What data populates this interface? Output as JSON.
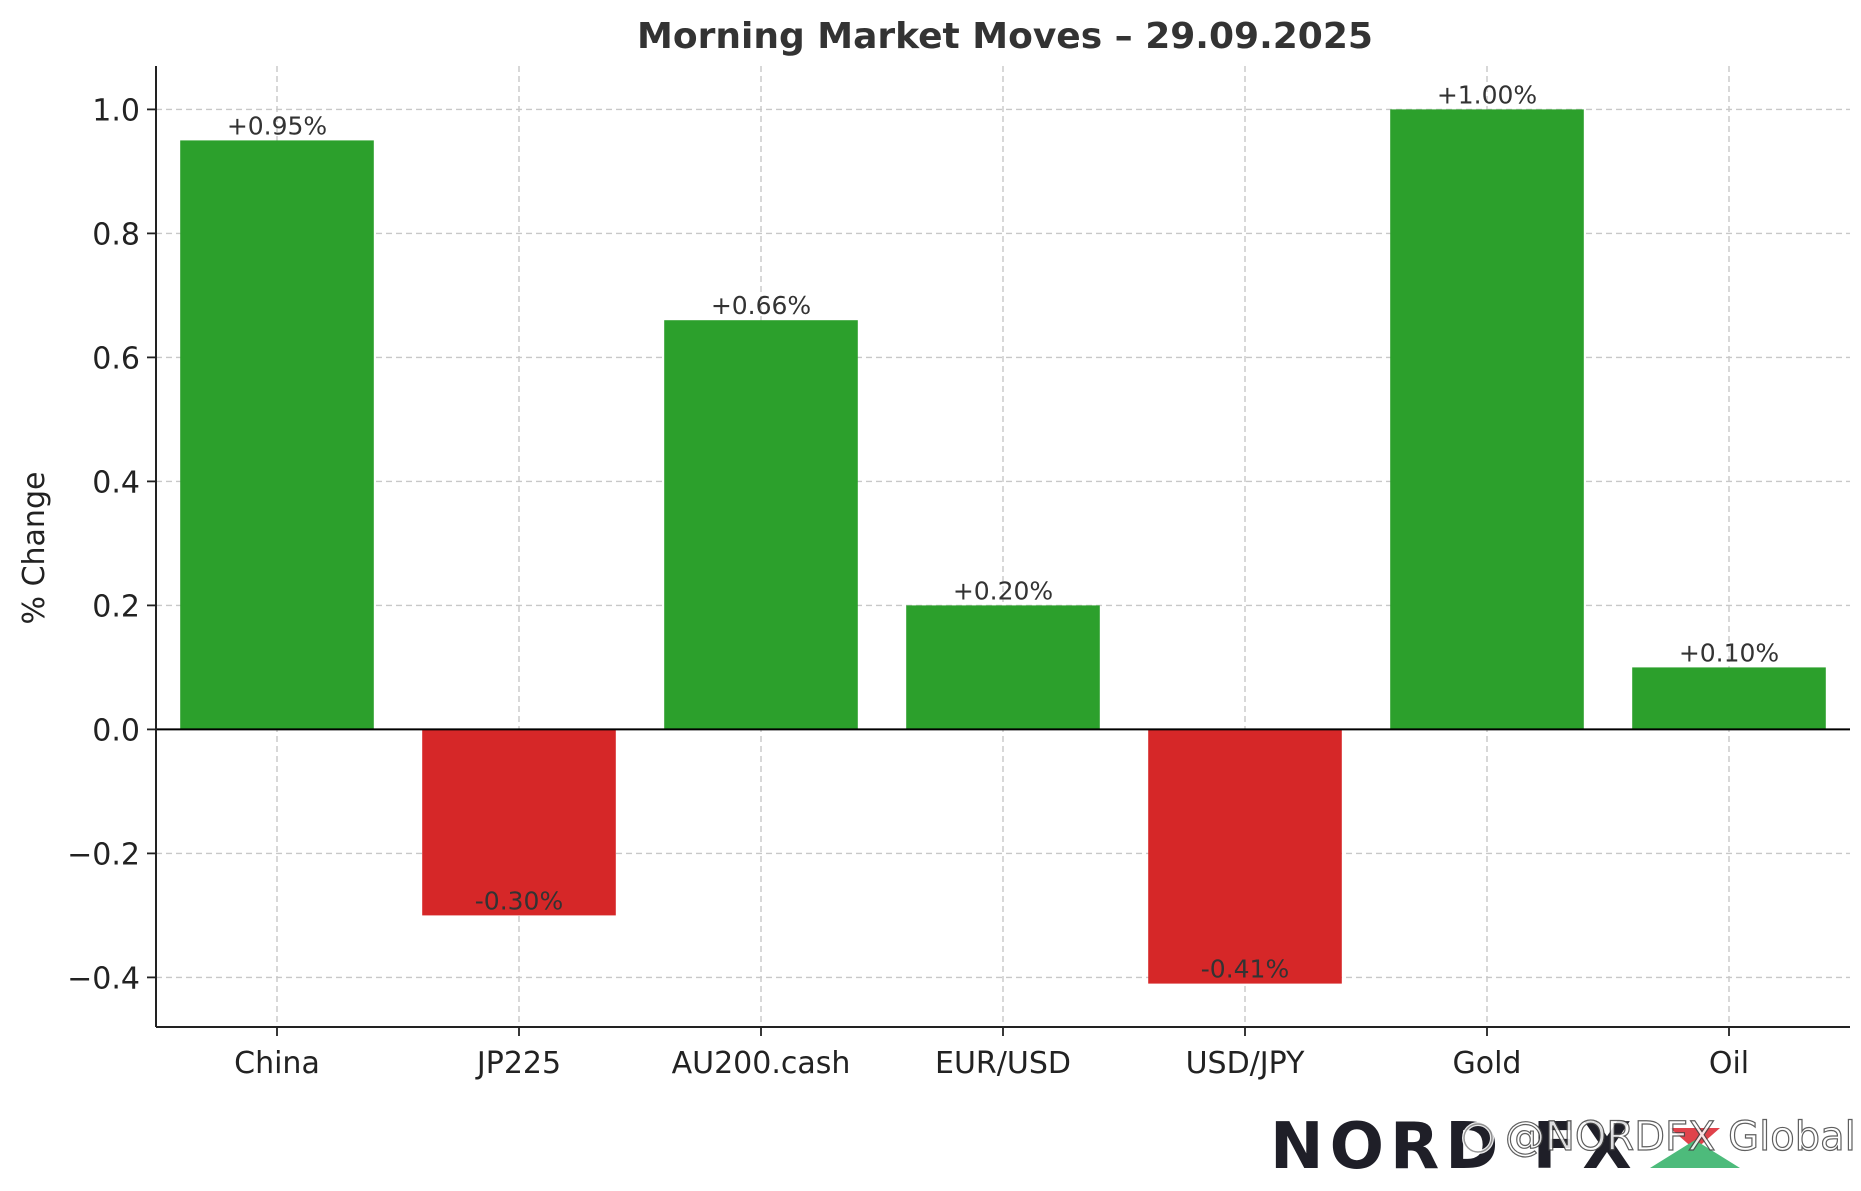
{
  "chart_data": {
    "type": "bar",
    "title": "Morning Market Moves – 29.09.2025",
    "xlabel": "",
    "ylabel": "% Change",
    "categories": [
      "China",
      "JP225",
      "AU200.cash",
      "EUR/USD",
      "USD/JPY",
      "Gold",
      "Oil"
    ],
    "values": [
      0.95,
      -0.3,
      0.66,
      0.2,
      -0.41,
      1.0,
      0.1
    ],
    "data_labels": [
      "+0.95%",
      "-0.30%",
      "+0.66%",
      "+0.20%",
      "-0.41%",
      "+1.00%",
      "+0.10%"
    ],
    "ylim": [
      -0.48,
      1.07
    ],
    "yticks": [
      -0.4,
      -0.2,
      0.0,
      0.2,
      0.4,
      0.6,
      0.8,
      1.0
    ],
    "ytick_labels": [
      "−0.4",
      "−0.2",
      "0.0",
      "0.2",
      "0.4",
      "0.6",
      "0.8",
      "1.0"
    ],
    "grid": true,
    "colors": {
      "positive": "#2ca02c",
      "negative": "#d62728",
      "zero_line": "#000000",
      "grid": "#c8c8c8",
      "text": "#333333"
    }
  },
  "watermark": {
    "logo_text": "NORD FX",
    "handle": "@NORDFX Global",
    "icon": "social-glyph-icon"
  }
}
